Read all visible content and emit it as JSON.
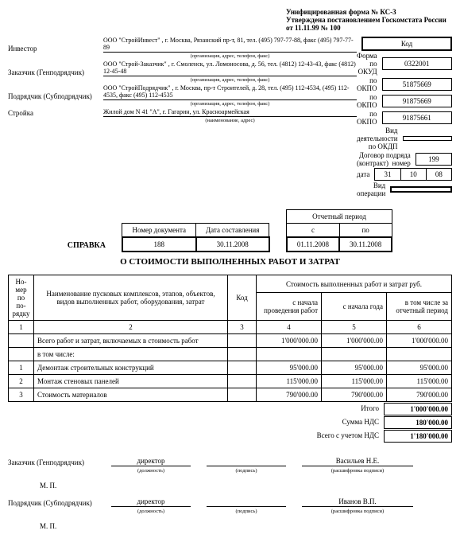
{
  "form_header": {
    "line1": "Унифицированная форма № КС-3",
    "line2": "Утверждена постановлением Госкомстата России",
    "line3": "от 11.11.99 № 100"
  },
  "code_header": "Код",
  "code_rows": [
    {
      "label": "Форма по ОКУД",
      "value": "0322001"
    },
    {
      "label": "по ОКПО",
      "value": "51875669"
    },
    {
      "label": "по ОКПО",
      "value": "91875669"
    },
    {
      "label": "по ОКПО",
      "value": "91875661"
    }
  ],
  "parties": {
    "investor_label": "Инвестор",
    "investor_value": "ООО \"СтройИнвест\" , г. Москва, Рязанский пр-т, 81, тел. (495) 797-77-88, факс (495) 797-77-89",
    "investor_sub": "(организация, адрес, телефон, факс)",
    "customer_label": "Заказчик (Генподрядчик)",
    "customer_value": "ООО \"Строй-Заказчик\" , г. Смоленск, ул. Ломоносова, д. 56, тел. (4812) 12-43-43, факс (4812) 12-45-48",
    "customer_sub": "(организация, адрес, телефон, факс)",
    "contractor_label": "Подрядчик (Субподрядчик)",
    "contractor_value": "ООО \"СтройПодрядчик\" , г. Москва, пр-т Строителей, д. 28, тел. (495) 112-4534, (495) 112-4535, факс (495) 112-4535",
    "contractor_sub": "(организация, адрес, телефон, факс)",
    "building_label": "Стройка",
    "building_value": "Жилой дом N 41 \"А\", г. Гагарин, ул. Красноармейская",
    "building_sub": "(наименование, адрес)"
  },
  "right_labels": {
    "okdp": "Вид деятельности по ОКДП",
    "contract": "Договор подряда (контракт)",
    "contract_nomer": "номер",
    "contract_data": "дата",
    "contract_no": "199",
    "d": "31",
    "m": "10",
    "y": "08",
    "operation": "Вид операции"
  },
  "doc_meta": {
    "nomer_h": "Номер документа",
    "date_h": "Дата составления",
    "nomer": "188",
    "date": "30.11.2008",
    "period_h": "Отчетный период",
    "from_h": "с",
    "to_h": "по",
    "from": "01.11.2008",
    "to": "30.11.2008",
    "spravka": "СПРАВКА"
  },
  "title": "О СТОИМОСТИ ВЫПОЛНЕННЫХ РАБОТ И ЗАТРАТ",
  "main_headers": {
    "num": "Но-мер по по-рядку",
    "name": "Наименование пусковых комплексов, этапов, объектов, видов выполненных работ, оборудования, затрат",
    "code": "Код",
    "cost_top": "Стоимость выполненных работ и затрат руб.",
    "c1": "с начала проведения работ",
    "c2": "с начала года",
    "c3": "в том числе за отчетный период",
    "n1": "1",
    "n2": "2",
    "n3": "3",
    "n4": "4",
    "n5": "5",
    "n6": "6"
  },
  "rows": [
    {
      "n": "",
      "name": "Всего работ и затрат, включаемых в стоимость работ",
      "c": "",
      "v1": "1'000'000.00",
      "v2": "1'000'000.00",
      "v3": "1'000'000.00"
    },
    {
      "n": "",
      "name": "в том числе:",
      "c": "",
      "v1": "",
      "v2": "",
      "v3": ""
    },
    {
      "n": "1",
      "name": "Демонтаж строительных конструкций",
      "c": "",
      "v1": "95'000.00",
      "v2": "95'000.00",
      "v3": "95'000.00"
    },
    {
      "n": "2",
      "name": "Монтаж стеновых панелей",
      "c": "",
      "v1": "115'000.00",
      "v2": "115'000.00",
      "v3": "115'000.00"
    },
    {
      "n": "3",
      "name": "Стоимость материалов",
      "c": "",
      "v1": "790'000.00",
      "v2": "790'000.00",
      "v3": "790'000.00"
    }
  ],
  "totals": [
    {
      "label": "Итого",
      "value": "1'000'000.00"
    },
    {
      "label": "Сумма НДС",
      "value": "180'000.00"
    },
    {
      "label": "Всего с учетом НДС",
      "value": "1'180'000.00"
    }
  ],
  "sign": {
    "customer_role": "Заказчик (Генподрядчик)",
    "contractor_role": "Подрядчик (Субподрядчик)",
    "position": "директор",
    "pos_sub": "(должность)",
    "sig_sub": "(подпись)",
    "name_sub": "(расшифровка подписи)",
    "customer_name": "Васильев Н.Е.",
    "contractor_name": "Иванов В.П.",
    "mp": "М. П."
  }
}
